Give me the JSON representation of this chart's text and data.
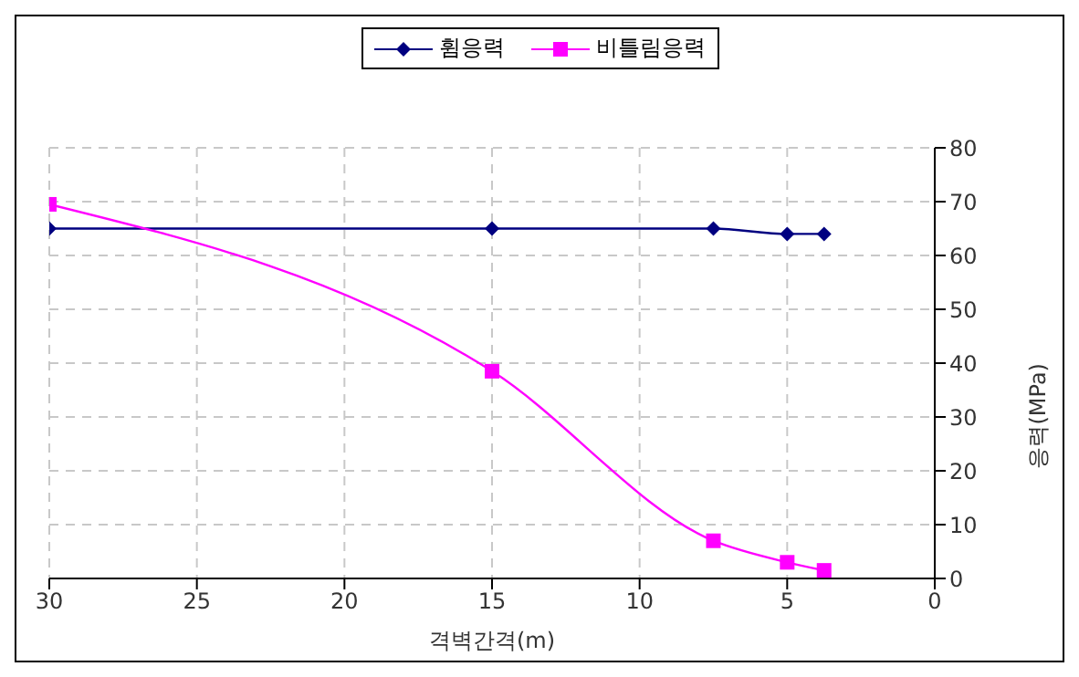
{
  "chart_data": {
    "type": "line",
    "xlabel": "격벽간격(m)",
    "ylabel": "응력(MPa)",
    "x": [
      30,
      15,
      7.5,
      5,
      3.75
    ],
    "series": [
      {
        "name": "휨응력",
        "color": "#000080",
        "values": [
          65,
          65,
          65,
          64,
          64
        ],
        "marker": "diamond"
      },
      {
        "name": "비틀림응력",
        "color": "#ff00ff",
        "values": [
          69.5,
          38.5,
          7,
          3,
          1.5
        ],
        "marker": "square"
      }
    ],
    "xlim": [
      30,
      0
    ],
    "xticks": [
      30,
      25,
      20,
      15,
      10,
      5,
      0
    ],
    "ylim": [
      0,
      80
    ],
    "yticks": [
      0,
      10,
      20,
      30,
      40,
      50,
      60,
      70,
      80
    ],
    "grid": true,
    "legend": "top",
    "line_style": "solid"
  }
}
